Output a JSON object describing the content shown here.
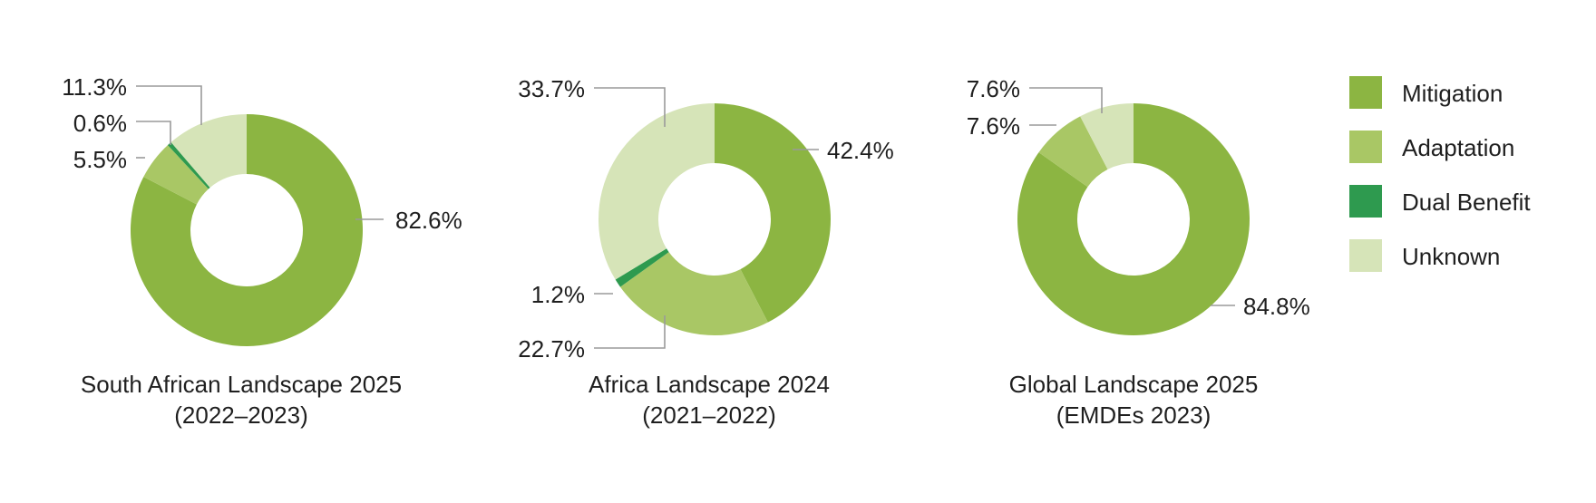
{
  "categories": [
    {
      "key": "mitigation",
      "label": "Mitigation",
      "color": "#8cb542"
    },
    {
      "key": "adaptation",
      "label": "Adaptation",
      "color": "#a9c765"
    },
    {
      "key": "dual",
      "label": "Dual Benefit",
      "color": "#2e9a4f"
    },
    {
      "key": "unknown",
      "label": "Unknown",
      "color": "#d6e4b8"
    }
  ],
  "chart_data": [
    {
      "type": "pie",
      "subtype": "donut",
      "title_line1": "South African Landscape 2025",
      "title_line2": "(2022–2023)",
      "slices": [
        {
          "category": "Mitigation",
          "value": 82.6,
          "label": "82.6%"
        },
        {
          "category": "Adaptation",
          "value": 5.5,
          "label": "5.5%"
        },
        {
          "category": "Dual Benefit",
          "value": 0.6,
          "label": "0.6%"
        },
        {
          "category": "Unknown",
          "value": 11.3,
          "label": "11.3%"
        }
      ]
    },
    {
      "type": "pie",
      "subtype": "donut",
      "title_line1": "Africa Landscape 2024",
      "title_line2": "(2021–2022)",
      "slices": [
        {
          "category": "Mitigation",
          "value": 42.4,
          "label": "42.4%"
        },
        {
          "category": "Adaptation",
          "value": 22.7,
          "label": "22.7%"
        },
        {
          "category": "Dual Benefit",
          "value": 1.2,
          "label": "1.2%"
        },
        {
          "category": "Unknown",
          "value": 33.7,
          "label": "33.7%"
        }
      ]
    },
    {
      "type": "pie",
      "subtype": "donut",
      "title_line1": "Global Landscape 2025",
      "title_line2": "(EMDEs 2023)",
      "slices": [
        {
          "category": "Mitigation",
          "value": 84.8,
          "label": "84.8%"
        },
        {
          "category": "Adaptation",
          "value": 7.6,
          "label": "7.6%"
        },
        {
          "category": "Unknown",
          "value": 7.6,
          "label": "7.6%"
        }
      ]
    }
  ]
}
